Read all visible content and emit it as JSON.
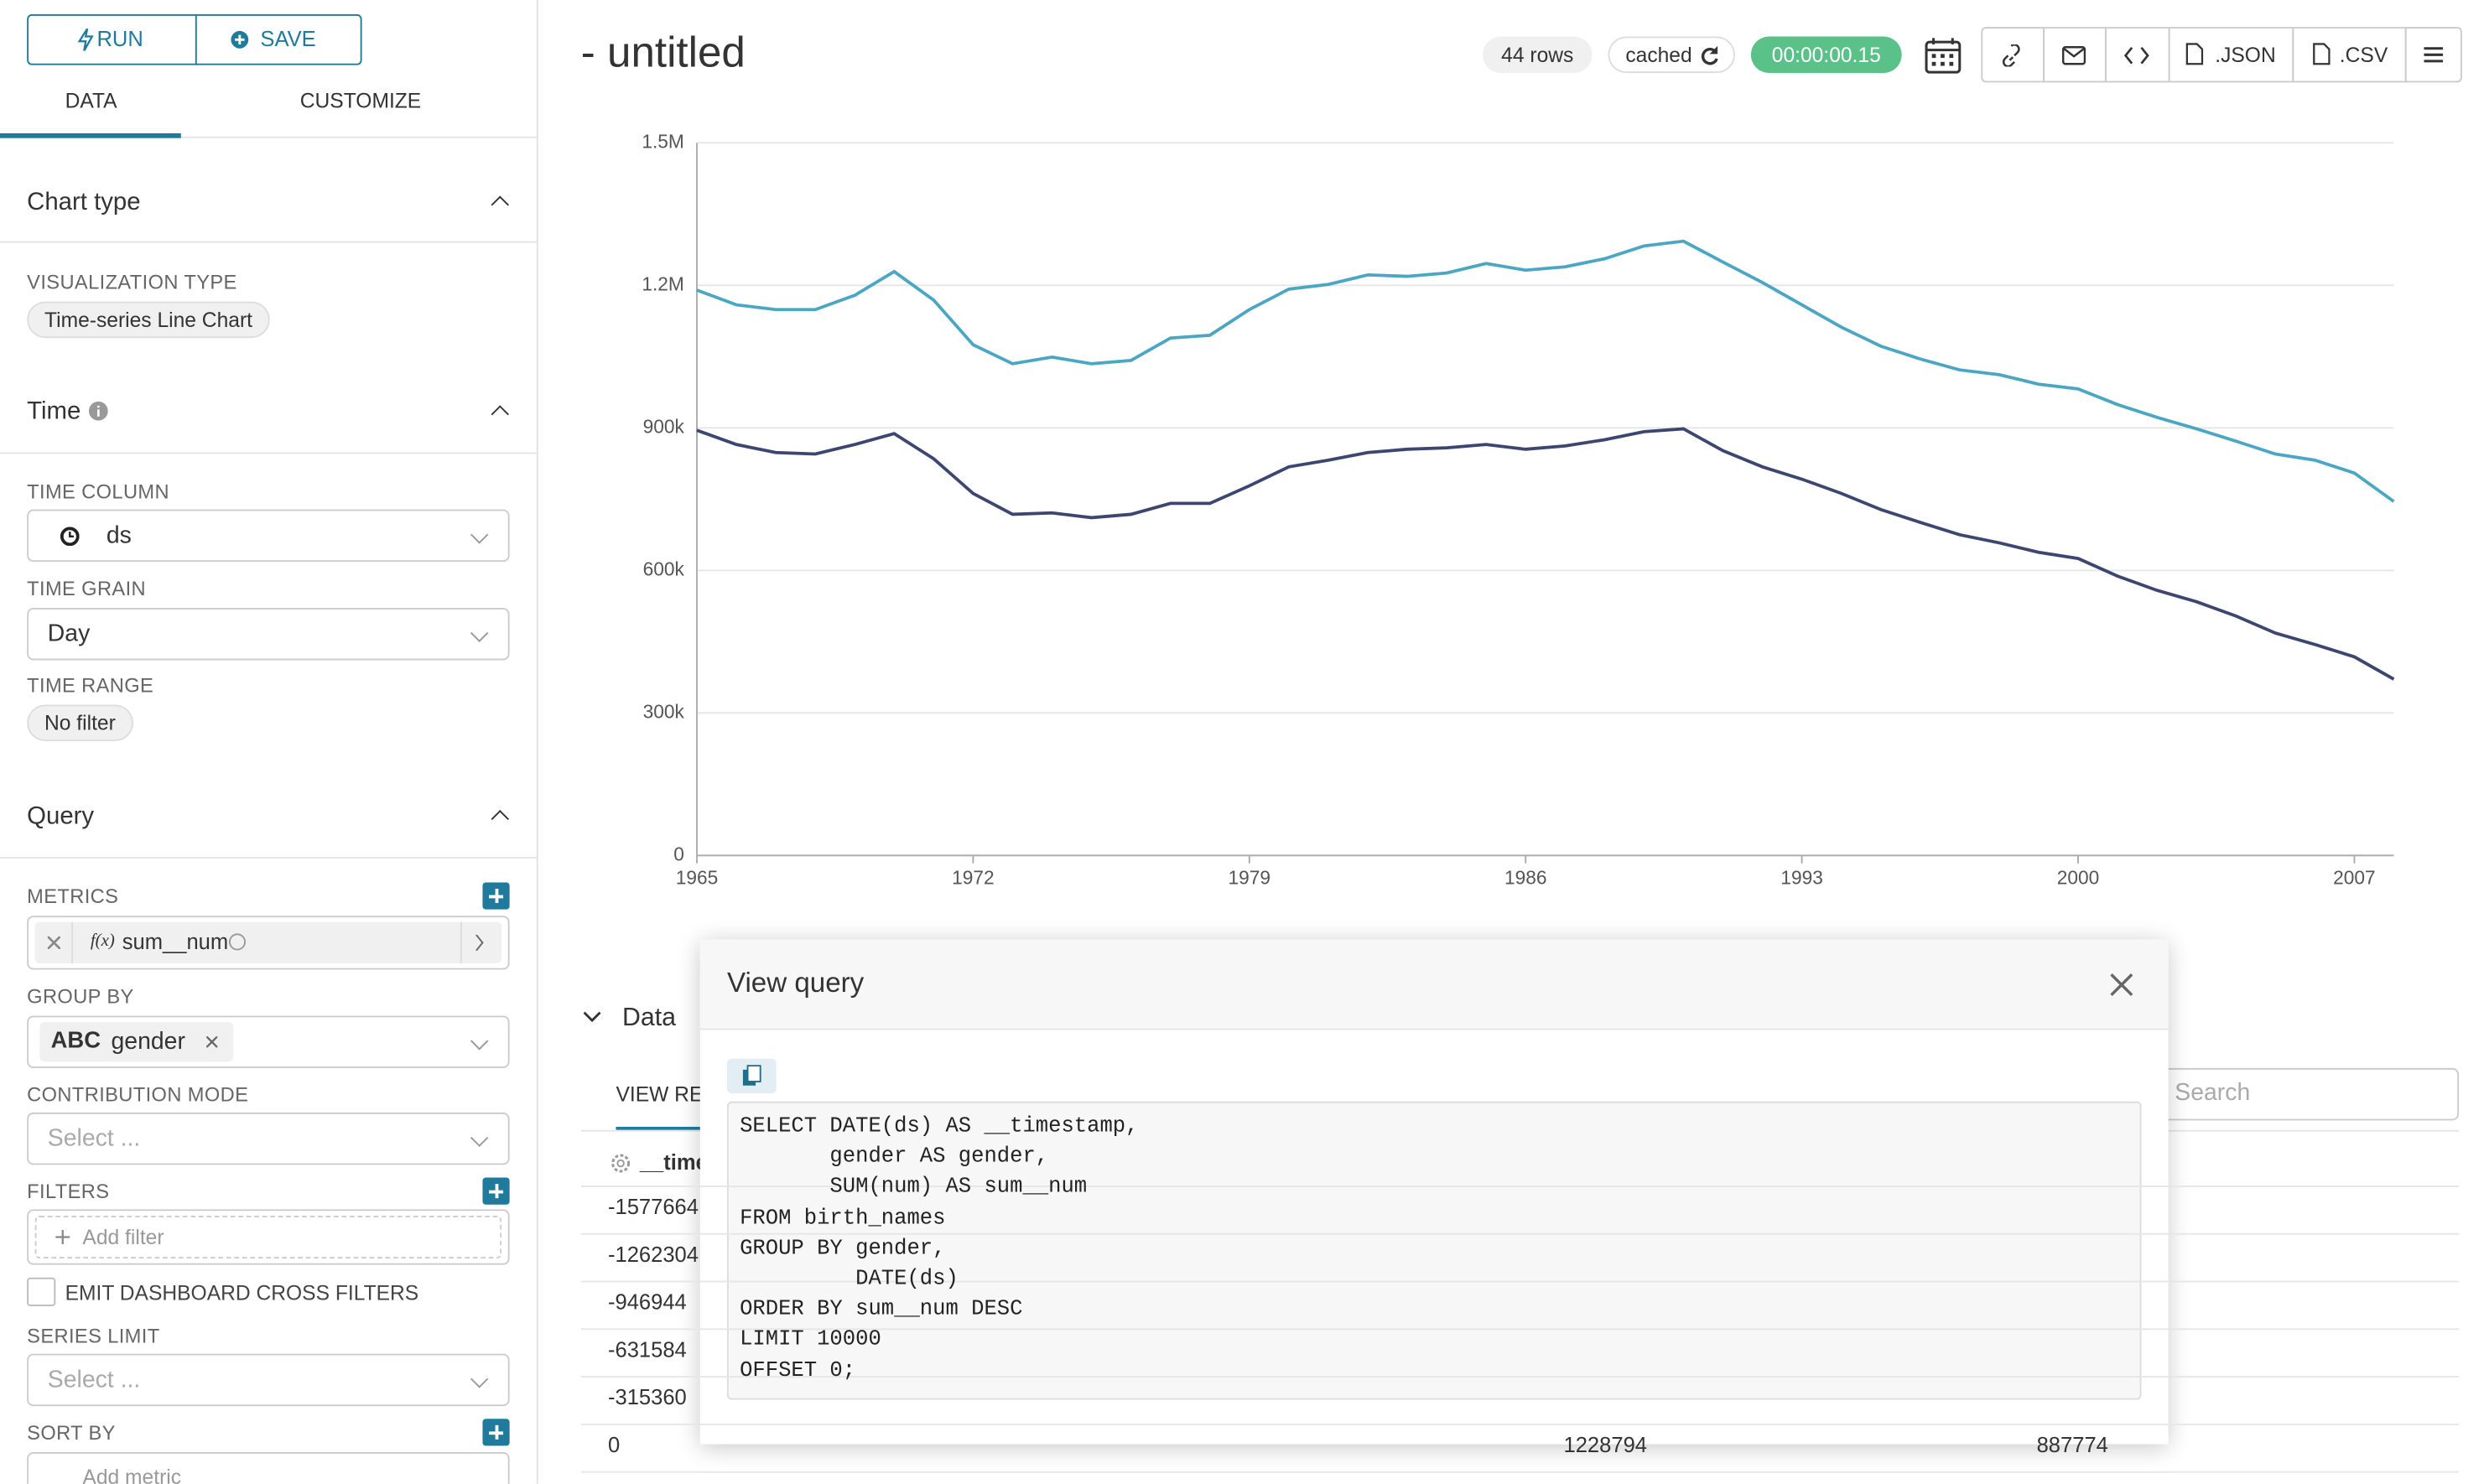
{
  "toolbar": {
    "run": "RUN",
    "save": "SAVE"
  },
  "tabs": [
    "DATA",
    "CUSTOMIZE"
  ],
  "chart_type": {
    "title": "Chart type",
    "viz_label": "VISUALIZATION TYPE",
    "viz_value": "Time-series Line Chart"
  },
  "time": {
    "title": "Time",
    "column_label": "TIME COLUMN",
    "column_value": "ds",
    "grain_label": "TIME GRAIN",
    "grain_value": "Day",
    "range_label": "TIME RANGE",
    "range_value": "No filter"
  },
  "query": {
    "title": "Query",
    "metrics_label": "METRICS",
    "metric_prefix": "f(x)",
    "metric": "sum__num",
    "groupby_label": "GROUP BY",
    "groupby_type": "ABC",
    "groupby_value": "gender",
    "contribution_label": "CONTRIBUTION MODE",
    "contribution_placeholder": "Select ...",
    "filters_label": "FILTERS",
    "add_filter": "Add filter",
    "emit_label": "EMIT DASHBOARD CROSS FILTERS",
    "series_limit_label": "SERIES LIMIT",
    "series_limit_placeholder": "Select ...",
    "sort_by_label": "SORT BY",
    "add_metric": "Add metric"
  },
  "header": {
    "title": "- untitled",
    "rows": "44 rows",
    "cached": "cached",
    "timer": "00:00:00.15",
    "json": ".JSON",
    "csv": ".CSV"
  },
  "chart_data": {
    "type": "line",
    "x": [
      1965,
      1966,
      1967,
      1968,
      1969,
      1970,
      1971,
      1972,
      1973,
      1974,
      1975,
      1976,
      1977,
      1978,
      1979,
      1980,
      1981,
      1982,
      1983,
      1984,
      1985,
      1986,
      1987,
      1988,
      1989,
      1990,
      1991,
      1992,
      1993,
      1994,
      1995,
      1996,
      1997,
      1998,
      1999,
      2000,
      2001,
      2002,
      2003,
      2004,
      2005,
      2006,
      2007,
      2008
    ],
    "series": [
      {
        "color": "#4ba6c4",
        "values": [
          1190000,
          1159000,
          1149000,
          1149000,
          1179000,
          1229000,
          1169000,
          1075000,
          1035000,
          1049000,
          1035000,
          1042000,
          1089000,
          1095000,
          1149000,
          1192000,
          1202000,
          1222000,
          1219000,
          1226000,
          1246000,
          1232000,
          1239000,
          1256000,
          1283000,
          1293000,
          1249000,
          1206000,
          1159000,
          1112000,
          1072000,
          1045000,
          1022000,
          1012000,
          992000,
          982000,
          949000,
          922000,
          898000,
          872000,
          845000,
          832000,
          805000,
          745000
        ]
      },
      {
        "color": "#3c4670",
        "values": [
          895000,
          865000,
          848000,
          845000,
          865000,
          888000,
          835000,
          762000,
          718000,
          721000,
          711000,
          718000,
          741000,
          741000,
          778000,
          818000,
          832000,
          848000,
          855000,
          858000,
          865000,
          855000,
          862000,
          875000,
          892000,
          898000,
          852000,
          818000,
          792000,
          762000,
          728000,
          701000,
          675000,
          658000,
          638000,
          625000,
          588000,
          558000,
          534000,
          504000,
          468000,
          444000,
          418000,
          371000
        ]
      }
    ],
    "xlim": [
      1965,
      2008
    ],
    "xticks": [
      1965,
      1972,
      1979,
      1986,
      1993,
      2000,
      2007
    ],
    "ylim": [
      0,
      1500000
    ],
    "yticks": [
      0,
      {
        "value": 300000,
        "label": "300k"
      },
      {
        "value": 600000,
        "label": "600k"
      },
      {
        "value": 900000,
        "label": "900k"
      },
      {
        "value": 1200000,
        "label": "1.2M"
      },
      {
        "value": 1500000,
        "label": "1.5M"
      }
    ],
    "grid": true
  },
  "data_pane": {
    "title": "Data",
    "tab": "VIEW RES",
    "search": "Search",
    "column": "__time",
    "rows": [
      [
        "-1577664"
      ],
      [
        "-1262304"
      ],
      [
        "-946944"
      ],
      [
        "-631584"
      ],
      [
        "-315360"
      ],
      [
        "0",
        "1228794",
        "887774"
      ]
    ]
  },
  "modal": {
    "title": "View query",
    "sql": [
      "SELECT DATE(ds) AS __timestamp,",
      "       gender AS gender,",
      "       SUM(num) AS sum__num",
      "FROM birth_names",
      "GROUP BY gender,",
      "         DATE(ds)",
      "ORDER BY sum__num DESC",
      "LIMIT 10000",
      "OFFSET 0;"
    ]
  }
}
